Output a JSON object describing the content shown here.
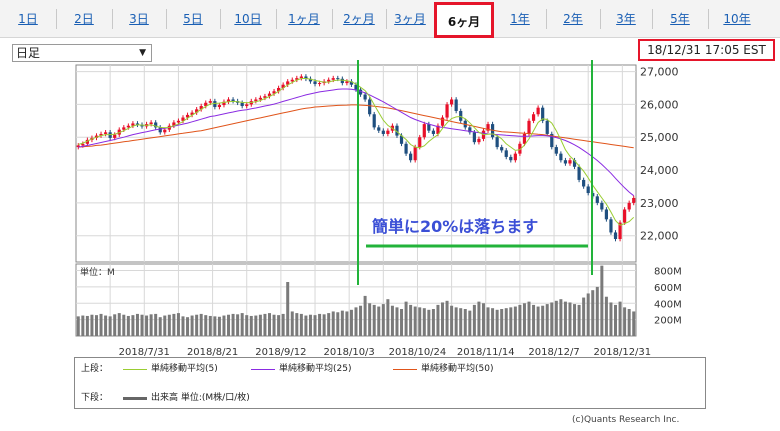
{
  "tabs": [
    {
      "label": "1日",
      "active": false
    },
    {
      "label": "2日",
      "active": false
    },
    {
      "label": "3日",
      "active": false
    },
    {
      "label": "5日",
      "active": false
    },
    {
      "label": "10日",
      "active": false
    },
    {
      "label": "1ヶ月",
      "active": false
    },
    {
      "label": "2ヶ月",
      "active": false
    },
    {
      "label": "3ヶ月",
      "active": false
    },
    {
      "label": "6ヶ月",
      "active": true
    },
    {
      "label": "1年",
      "active": false
    },
    {
      "label": "2年",
      "active": false
    },
    {
      "label": "3年",
      "active": false
    },
    {
      "label": "5年",
      "active": false
    },
    {
      "label": "10年",
      "active": false
    }
  ],
  "interval_select": {
    "value": "日足"
  },
  "timestamp": "18/12/31 17:05 EST",
  "annotation": "簡単に20%は落ちます",
  "volume_unit_label": "単位：M",
  "legend": {
    "upper_label": "上段：",
    "lower_label": "下段：",
    "items": [
      {
        "name": "単純移動平均(5)",
        "color": "#9acd32"
      },
      {
        "name": "単純移動平均(25)",
        "color": "#8a2be2"
      },
      {
        "name": "単純移動平均(50)",
        "color": "#e0541a"
      }
    ],
    "volume_item": {
      "name": "出来高 単位:(M株/口/枚)",
      "color": "#666666"
    }
  },
  "credit": "(c)Quants Research Inc.",
  "colors": {
    "up": "#e8102a",
    "down": "#1f4f7f",
    "highlight": "#e5152a",
    "marker": "#22b33a",
    "annotation": "#3b4fd6",
    "volume": "#7a7a7a"
  },
  "chart_data": {
    "type": "candlestick",
    "price_axis": {
      "ticks": [
        22000,
        23000,
        24000,
        25000,
        26000,
        27000
      ],
      "range": [
        21200,
        27200
      ]
    },
    "volume_axis": {
      "ticks": [
        "200M",
        "400M",
        "600M",
        "800M"
      ],
      "tick_values": [
        200,
        400,
        600,
        800
      ],
      "range": [
        0,
        880
      ]
    },
    "x_ticks": [
      "2018/7/31",
      "2018/8/21",
      "2018/9/12",
      "2018/10/3",
      "2018/10/24",
      "2018/11/14",
      "2018/12/7",
      "2018/12/31"
    ],
    "x_tick_index": [
      15,
      30,
      45,
      60,
      75,
      90,
      105,
      120
    ],
    "closes": [
      24750,
      24800,
      24920,
      24980,
      25050,
      25100,
      25150,
      24980,
      25080,
      25230,
      25300,
      25350,
      25420,
      25380,
      25330,
      25400,
      25450,
      25300,
      25150,
      25230,
      25350,
      25450,
      25500,
      25600,
      25680,
      25750,
      25850,
      25950,
      26050,
      26100,
      25920,
      25980,
      26080,
      26150,
      26100,
      26050,
      25950,
      26000,
      26100,
      26150,
      26200,
      26250,
      26330,
      26400,
      26500,
      26600,
      26700,
      26750,
      26800,
      26850,
      26780,
      26700,
      26620,
      26650,
      26700,
      26750,
      26800,
      26780,
      26650,
      26700,
      26600,
      26450,
      26300,
      26150,
      25700,
      25300,
      25200,
      25100,
      25200,
      25350,
      25050,
      24800,
      24500,
      24300,
      24700,
      25000,
      25400,
      25200,
      25100,
      25350,
      25600,
      26000,
      26150,
      25800,
      25500,
      25300,
      25150,
      24850,
      24950,
      25200,
      25400,
      25000,
      24700,
      24600,
      24400,
      24300,
      24500,
      24800,
      25100,
      25500,
      25700,
      25900,
      25500,
      25100,
      24700,
      24500,
      24300,
      24200,
      24300,
      24100,
      23700,
      23500,
      23300,
      23200,
      23000,
      22800,
      22500,
      22100,
      21900,
      22400,
      22800,
      23000,
      23150
    ],
    "ma5": [
      24780,
      24820,
      24880,
      24950,
      25000,
      25050,
      25080,
      25080,
      25090,
      25140,
      25200,
      25270,
      25340,
      25380,
      25370,
      25360,
      25380,
      25340,
      25300,
      25290,
      25300,
      25350,
      25400,
      25480,
      25580,
      25670,
      25760,
      25850,
      25940,
      26010,
      26030,
      26040,
      26060,
      26080,
      26090,
      26080,
      26060,
      26050,
      26060,
      26080,
      26120,
      26180,
      26240,
      26310,
      26400,
      26500,
      26590,
      26670,
      26740,
      26790,
      26790,
      26770,
      26730,
      26700,
      26680,
      26680,
      26720,
      26740,
      26740,
      26720,
      26690,
      26620,
      26520,
      26420,
      26240,
      25990,
      25750,
      25520,
      25360,
      25270,
      25170,
      25050,
      24930,
      24780,
      24700,
      24680,
      24740,
      24870,
      24980,
      25080,
      25270,
      25440,
      25570,
      25620,
      25630,
      25560,
      25440,
      25290,
      25150,
      25080,
      25090,
      25100,
      25050,
      24950,
      24800,
      24700,
      24600,
      24620,
      24760,
      24950,
      25200,
      25450,
      25560,
      25540,
      25430,
      25200,
      24920,
      24620,
      24420,
      24290,
      24120,
      23970,
      23760,
      23540,
      23340,
      23150,
      22960,
      22720,
      22460,
      22320,
      22370,
      22430,
      22560
    ],
    "ma25": [
      24700,
      24720,
      24750,
      24780,
      24810,
      24840,
      24870,
      24900,
      24930,
      24970,
      25000,
      25040,
      25080,
      25110,
      25140,
      25170,
      25200,
      25230,
      25250,
      25270,
      25300,
      25340,
      25370,
      25400,
      25430,
      25470,
      25510,
      25550,
      25590,
      25630,
      25650,
      25680,
      25710,
      25740,
      25770,
      25800,
      25820,
      25840,
      25870,
      25890,
      25920,
      25950,
      25980,
      26010,
      26050,
      26090,
      26130,
      26170,
      26210,
      26250,
      26290,
      26320,
      26350,
      26380,
      26400,
      26420,
      26440,
      26460,
      26470,
      26470,
      26460,
      26440,
      26400,
      26350,
      26290,
      26220,
      26150,
      26080,
      26000,
      25920,
      25840,
      25760,
      25680,
      25600,
      25540,
      25490,
      25440,
      25400,
      25360,
      25320,
      25300,
      25280,
      25260,
      25240,
      25220,
      25200,
      25180,
      25160,
      25140,
      25120,
      25100,
      25090,
      25080,
      25070,
      25060,
      25050,
      25040,
      25030,
      25030,
      25030,
      25040,
      25050,
      25050,
      25040,
      25020,
      24990,
      24950,
      24900,
      24840,
      24770,
      24690,
      24600,
      24500,
      24400,
      24290,
      24170,
      24040,
      23900,
      23750,
      23600,
      23460,
      23330,
      23220
    ],
    "ma50": [
      24700,
      24710,
      24720,
      24730,
      24750,
      24760,
      24780,
      24800,
      24820,
      24840,
      24860,
      24880,
      24900,
      24920,
      24940,
      24960,
      24980,
      25000,
      25020,
      25040,
      25060,
      25080,
      25100,
      25120,
      25140,
      25160,
      25180,
      25200,
      25230,
      25260,
      25290,
      25320,
      25350,
      25380,
      25410,
      25440,
      25470,
      25500,
      25530,
      25560,
      25590,
      25620,
      25650,
      25680,
      25710,
      25740,
      25770,
      25800,
      25830,
      25860,
      25880,
      25900,
      25920,
      25930,
      25940,
      25950,
      25960,
      25970,
      25975,
      25980,
      25985,
      25985,
      25980,
      25970,
      25960,
      25945,
      25930,
      25910,
      25890,
      25870,
      25840,
      25810,
      25780,
      25750,
      25720,
      25690,
      25660,
      25630,
      25600,
      25570,
      25540,
      25510,
      25480,
      25450,
      25420,
      25390,
      25360,
      25330,
      25300,
      25270,
      25240,
      25210,
      25190,
      25170,
      25160,
      25150,
      25140,
      25130,
      25120,
      25110,
      25100,
      25090,
      25080,
      25060,
      25040,
      25020,
      25000,
      24980,
      24960,
      24940,
      24920,
      24900,
      24880,
      24860,
      24840,
      24820,
      24800,
      24780,
      24760,
      24740,
      24720,
      24700,
      24680
    ],
    "volume": [
      240,
      250,
      245,
      260,
      255,
      270,
      250,
      240,
      265,
      280,
      260,
      245,
      255,
      270,
      260,
      250,
      265,
      270,
      230,
      250,
      260,
      270,
      280,
      240,
      230,
      250,
      260,
      270,
      255,
      245,
      240,
      235,
      250,
      260,
      270,
      265,
      280,
      255,
      245,
      250,
      260,
      270,
      280,
      260,
      255,
      270,
      660,
      300,
      280,
      270,
      250,
      260,
      255,
      270,
      265,
      280,
      300,
      290,
      310,
      300,
      320,
      350,
      370,
      490,
      400,
      380,
      360,
      390,
      450,
      370,
      350,
      330,
      420,
      380,
      360,
      350,
      340,
      320,
      330,
      380,
      410,
      430,
      370,
      350,
      340,
      330,
      310,
      380,
      420,
      400,
      350,
      340,
      320,
      330,
      340,
      350,
      360,
      380,
      400,
      420,
      380,
      360,
      370,
      390,
      410,
      430,
      450,
      420,
      410,
      390,
      380,
      470,
      520,
      560,
      600,
      860,
      480,
      410,
      380,
      420,
      350,
      330,
      300
    ]
  }
}
